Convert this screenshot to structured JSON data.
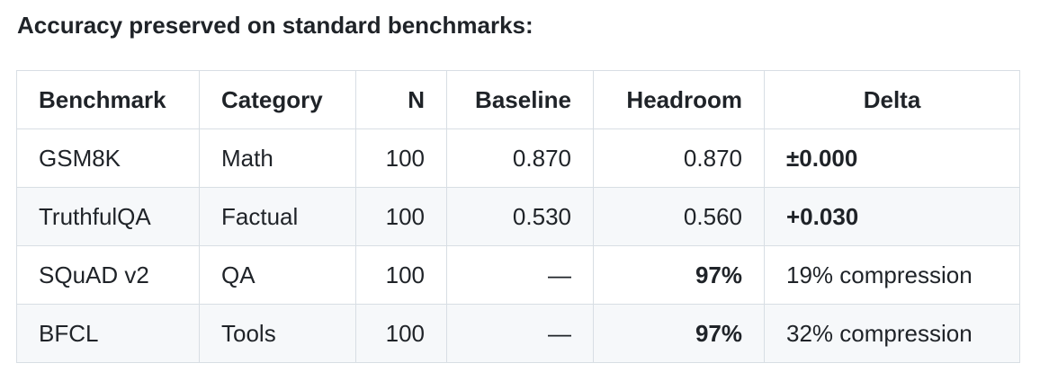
{
  "header": {
    "title": "Accuracy preserved on standard benchmarks:"
  },
  "table": {
    "columns": [
      "Benchmark",
      "Category",
      "N",
      "Baseline",
      "Headroom",
      "Delta"
    ],
    "rows": [
      [
        "GSM8K",
        "Math",
        "100",
        "0.870",
        "0.870",
        "±0.000"
      ],
      [
        "TruthfulQA",
        "Factual",
        "100",
        "0.530",
        "0.560",
        "+0.030"
      ],
      [
        "SQuAD v2",
        "QA",
        "100",
        "—",
        "97%",
        "19% compression"
      ],
      [
        "BFCL",
        "Tools",
        "100",
        "—",
        "97%",
        "32% compression"
      ]
    ]
  }
}
